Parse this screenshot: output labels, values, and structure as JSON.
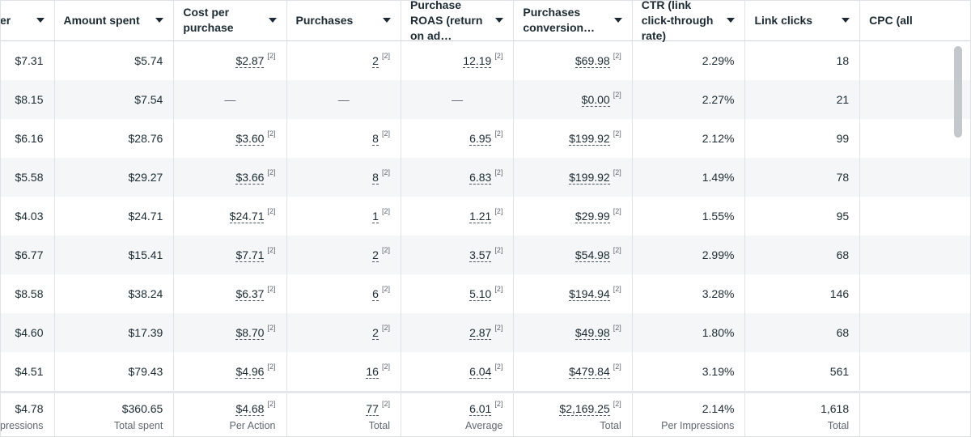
{
  "columns": [
    {
      "label": "er",
      "two_line": false
    },
    {
      "label": "Amount spent",
      "two_line": false
    },
    {
      "label": "Cost per purchase",
      "two_line": true
    },
    {
      "label": "Purchases",
      "two_line": false
    },
    {
      "label": "Purchase ROAS (return on ad…",
      "two_line": true
    },
    {
      "label": "Purchases conversion…",
      "two_line": true
    },
    {
      "label": "CTR (link click-through rate)",
      "two_line": true
    },
    {
      "label": "Link clicks",
      "two_line": false
    },
    {
      "label": "CPC (all",
      "two_line": false
    }
  ],
  "rows": [
    {
      "cpm": "$7.31",
      "spent": "$5.74",
      "cpp": "$2.87",
      "purchases": "2",
      "roas": "12.19",
      "conv_value": "$69.98",
      "ctr": "2.29%",
      "clicks": "18"
    },
    {
      "cpm": "$8.15",
      "spent": "$7.54",
      "cpp": "—",
      "purchases": "—",
      "roas": "—",
      "conv_value": "$0.00",
      "ctr": "2.27%",
      "clicks": "21"
    },
    {
      "cpm": "$6.16",
      "spent": "$28.76",
      "cpp": "$3.60",
      "purchases": "8",
      "roas": "6.95",
      "conv_value": "$199.92",
      "ctr": "2.12%",
      "clicks": "99"
    },
    {
      "cpm": "$5.58",
      "spent": "$29.27",
      "cpp": "$3.66",
      "purchases": "8",
      "roas": "6.83",
      "conv_value": "$199.92",
      "ctr": "1.49%",
      "clicks": "78"
    },
    {
      "cpm": "$4.03",
      "spent": "$24.71",
      "cpp": "$24.71",
      "purchases": "1",
      "roas": "1.21",
      "conv_value": "$29.99",
      "ctr": "1.55%",
      "clicks": "95"
    },
    {
      "cpm": "$6.77",
      "spent": "$15.41",
      "cpp": "$7.71",
      "purchases": "2",
      "roas": "3.57",
      "conv_value": "$54.98",
      "ctr": "2.99%",
      "clicks": "68"
    },
    {
      "cpm": "$8.58",
      "spent": "$38.24",
      "cpp": "$6.37",
      "purchases": "6",
      "roas": "5.10",
      "conv_value": "$194.94",
      "ctr": "3.28%",
      "clicks": "146"
    },
    {
      "cpm": "$4.60",
      "spent": "$17.39",
      "cpp": "$8.70",
      "purchases": "2",
      "roas": "2.87",
      "conv_value": "$49.98",
      "ctr": "1.80%",
      "clicks": "68"
    },
    {
      "cpm": "$4.51",
      "spent": "$79.43",
      "cpp": "$4.96",
      "purchases": "16",
      "roas": "6.04",
      "conv_value": "$479.84",
      "ctr": "3.19%",
      "clicks": "561"
    }
  ],
  "summary": {
    "cpm": {
      "value": "$4.78",
      "sub": "pressions"
    },
    "spent": {
      "value": "$360.65",
      "sub": "Total spent"
    },
    "cpp": {
      "value": "$4.68",
      "sub": "Per Action"
    },
    "purchases": {
      "value": "77",
      "sub": "Total"
    },
    "roas": {
      "value": "6.01",
      "sub": "Average"
    },
    "conv_value": {
      "value": "$2,169.25",
      "sub": "Total"
    },
    "ctr": {
      "value": "2.14%",
      "sub": "Per Impressions"
    },
    "clicks": {
      "value": "1,618",
      "sub": "Total"
    }
  },
  "attribution_marker": "[2]"
}
